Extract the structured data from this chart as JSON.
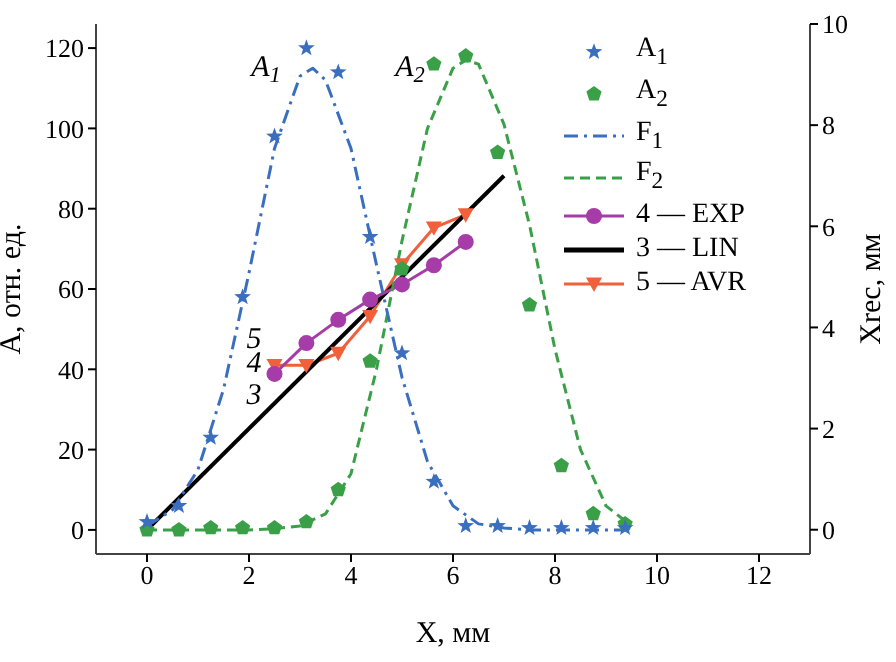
{
  "chart_data": {
    "type": "line",
    "xlabel": "X, мм",
    "ylabel": "A, отн. ед.",
    "y2label": "Xrec, мм",
    "xlim": [
      -1,
      13
    ],
    "xticks": [
      0,
      2,
      4,
      6,
      8,
      10,
      12
    ],
    "ylim": [
      -6,
      126
    ],
    "yticks": [
      0,
      20,
      40,
      60,
      80,
      100,
      120
    ],
    "y2lim": [
      -0.48,
      10
    ],
    "y2ticks": [
      0,
      2,
      4,
      6,
      8,
      10
    ],
    "legend": "top right",
    "grid": false,
    "annotations": [
      "A$_{1}$",
      "A$_{2}$",
      "5",
      "4",
      "3"
    ],
    "series": [
      {
        "name": "A$_{1}$",
        "type": "scatter",
        "marker": "star",
        "color": "#3a6fc0",
        "x": [
          0,
          0.625,
          1.25,
          1.875,
          2.5,
          3.125,
          3.75,
          4.375,
          5.0,
          5.625,
          6.25,
          6.875,
          7.5,
          8.125,
          8.75,
          9.375
        ],
        "values": [
          2,
          6,
          23,
          58,
          98,
          120,
          114,
          73,
          44,
          12,
          1,
          1,
          0.5,
          0.5,
          0.5,
          0.5
        ]
      },
      {
        "name": "A$_{2}$",
        "type": "scatter",
        "color": "#3aa048",
        "x": [
          0,
          0.625,
          1.25,
          1.875,
          2.5,
          3.125,
          3.75,
          4.375,
          5.0,
          5.625,
          6.25,
          6.875,
          7.5,
          8.125,
          8.75,
          9.375
        ],
        "values": [
          0,
          0,
          0.5,
          0.5,
          0.5,
          2,
          10,
          42,
          65,
          116,
          118,
          94,
          56,
          16,
          4,
          1.5
        ]
      },
      {
        "name": "F$_{1}$",
        "marker": "none",
        "line_style": "dashdot",
        "color": "#3a6fc0",
        "x": [
          0,
          0.5,
          1,
          1.5,
          2,
          2.5,
          3,
          3.25,
          3.5,
          4,
          4.5,
          5,
          5.5,
          6,
          6.5,
          7,
          7.5,
          8,
          9,
          9.4
        ],
        "values": [
          1,
          5,
          15,
          35,
          64,
          95,
          113,
          115,
          112,
          95,
          66,
          38,
          17,
          6,
          1.5,
          0.5,
          0,
          0,
          0,
          0
        ]
      },
      {
        "name": "F$_{2}$",
        "marker": "none",
        "line_style": "dashed",
        "color": "#3aa048",
        "x": [
          0,
          1,
          2,
          2.5,
          3,
          3.5,
          4,
          4.5,
          5,
          5.5,
          6,
          6.25,
          6.5,
          7,
          7.5,
          8,
          8.5,
          9,
          9.4
        ],
        "values": [
          0,
          0,
          0,
          0.3,
          1,
          4,
          14,
          40,
          72,
          100,
          115,
          117,
          116,
          101,
          76,
          45,
          20,
          6,
          2
        ]
      },
      {
        "name": "4 — EXP",
        "axis": "y2",
        "marker": "circle",
        "line_style": "solid",
        "color": "#a63ca8",
        "x": [
          2.5,
          3.125,
          3.75,
          4.375,
          5.0,
          5.625,
          6.25
        ],
        "values": [
          3.08,
          3.69,
          4.15,
          4.55,
          4.85,
          5.23,
          5.69
        ]
      },
      {
        "name": "3 — LIN",
        "axis": "y2",
        "marker": "none",
        "line_style": "solid",
        "color": "#000000",
        "x": [
          0,
          7
        ],
        "values": [
          0,
          7
        ]
      },
      {
        "name": "5 — AVR",
        "axis": "y2",
        "marker": "triangle",
        "line_style": "solid",
        "color": "#f0603a",
        "x": [
          2.5,
          3.125,
          3.75,
          4.375,
          5.0,
          5.625,
          6.25
        ],
        "values": [
          3.25,
          3.25,
          3.49,
          4.22,
          5.24,
          5.97,
          6.23
        ]
      }
    ]
  }
}
